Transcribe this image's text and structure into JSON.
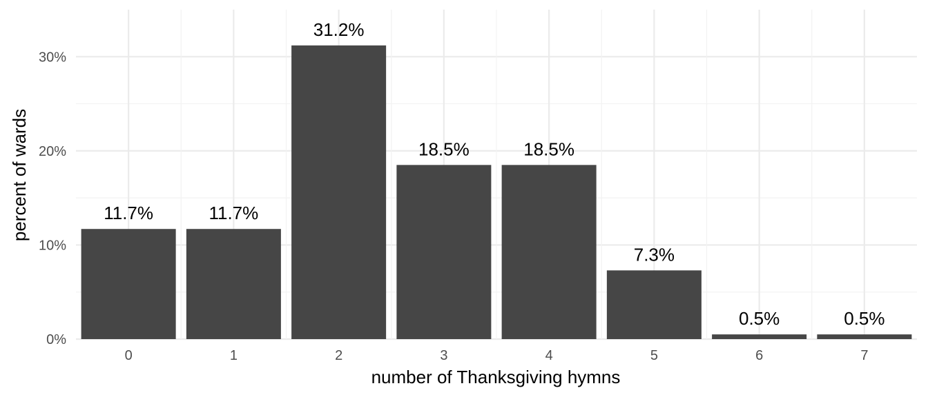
{
  "chart_data": {
    "type": "bar",
    "categories": [
      "0",
      "1",
      "2",
      "3",
      "4",
      "5",
      "6",
      "7"
    ],
    "values": [
      11.7,
      11.7,
      31.2,
      18.5,
      18.5,
      7.3,
      0.5,
      0.5
    ],
    "value_labels": [
      "11.7%",
      "11.7%",
      "31.2%",
      "18.5%",
      "18.5%",
      "7.3%",
      "0.5%",
      "0.5%"
    ],
    "xlabel": "number of Thanksgiving hymns",
    "ylabel": "percent of wards",
    "ylim": [
      0,
      35
    ],
    "yticks": [
      0,
      10,
      20,
      30
    ],
    "ytick_labels": [
      "0%",
      "10%",
      "20%",
      "30%"
    ],
    "grid": true,
    "bar_color": "#464646",
    "grid_color": "#ebebeb"
  }
}
